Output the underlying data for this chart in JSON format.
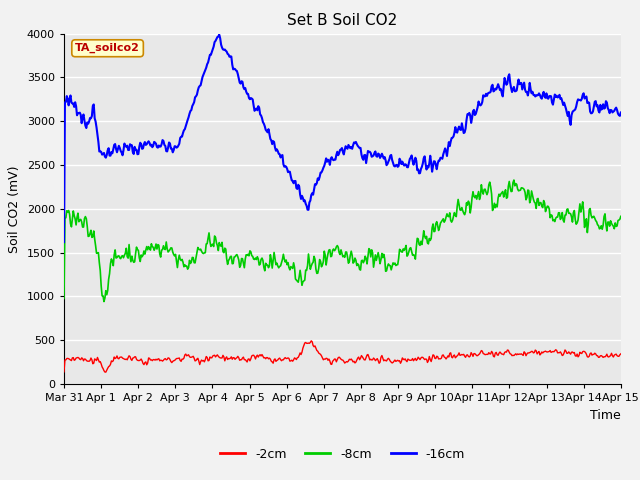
{
  "title": "Set B Soil CO2",
  "ylabel": "Soil CO2 (mV)",
  "xlabel": "Time",
  "annotation": "TA_soilco2",
  "legend_labels": [
    "-2cm",
    "-8cm",
    "-16cm"
  ],
  "legend_colors": [
    "#ff0000",
    "#00cc00",
    "#0000ff"
  ],
  "ylim": [
    0,
    4000
  ],
  "yticks": [
    0,
    500,
    1000,
    1500,
    2000,
    2500,
    3000,
    3500,
    4000
  ],
  "xtick_labels": [
    "Mar 31",
    "Apr 1",
    "Apr 2",
    "Apr 3",
    "Apr 4",
    "Apr 5",
    "Apr 6",
    "Apr 7",
    "Apr 8",
    "Apr 9",
    "Apr 10",
    "Apr 11",
    "Apr 12",
    "Apr 13",
    "Apr 14",
    "Apr 15"
  ],
  "bg_color": "#e8e8e8",
  "plot_bg_color": "#e8e8e8",
  "fig_bg_color": "#f2f2f2",
  "grid_color": "#ffffff",
  "title_fontsize": 11,
  "label_fontsize": 9,
  "tick_fontsize": 8
}
